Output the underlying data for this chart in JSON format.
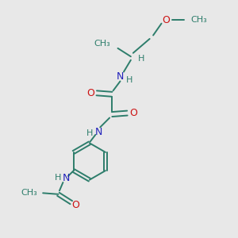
{
  "bg_color": "#e8e8e8",
  "bond_color": "#2d7d6b",
  "N_color": "#2222bb",
  "O_color": "#cc1111",
  "bond_width": 1.4,
  "figsize": [
    3.0,
    3.0
  ],
  "dpi": 100,
  "xlim": [
    0,
    10
  ],
  "ylim": [
    0,
    10
  ]
}
